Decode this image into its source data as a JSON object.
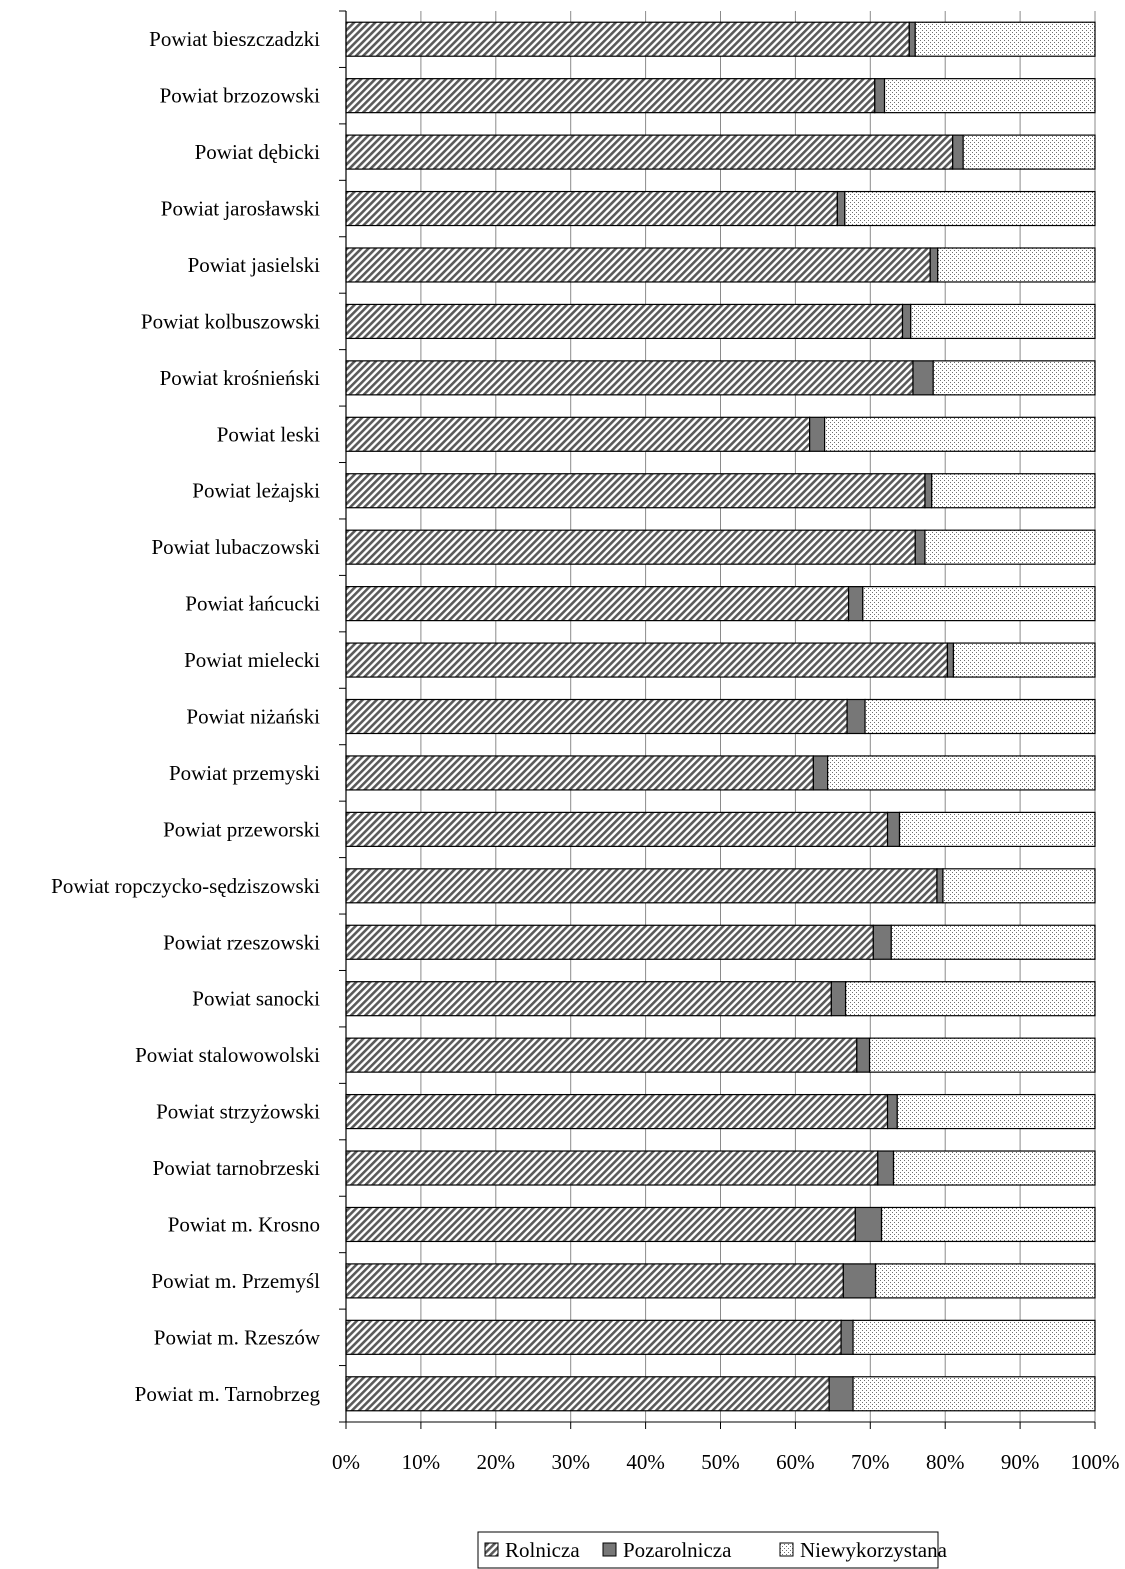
{
  "chart_data": {
    "type": "bar",
    "orientation": "horizontal",
    "stacked": "percent",
    "title": "",
    "xlabel": "",
    "ylabel": "",
    "xlim": [
      0,
      100
    ],
    "x_ticks": [
      "0%",
      "10%",
      "20%",
      "30%",
      "40%",
      "50%",
      "60%",
      "70%",
      "80%",
      "90%",
      "100%"
    ],
    "grid": "vertical",
    "legend": {
      "position": "bottom-right"
    },
    "categories": [
      "Powiat bieszczadzki",
      "Powiat brzozowski",
      "Powiat dębicki",
      "Powiat jarosławski",
      "Powiat jasielski",
      "Powiat kolbuszowski",
      "Powiat krośnieński",
      "Powiat leski",
      "Powiat leżajski",
      "Powiat lubaczowski",
      "Powiat łańcucki",
      "Powiat mielecki",
      "Powiat niżański",
      "Powiat przemyski",
      "Powiat przeworski",
      "Powiat ropczycko-sędziszowski",
      "Powiat rzeszowski",
      "Powiat sanocki",
      "Powiat stalowowolski",
      "Powiat strzyżowski",
      "Powiat tarnobrzeski",
      "Powiat m. Krosno",
      "Powiat m. Przemyśl",
      "Powiat m. Rzeszów",
      "Powiat m. Tarnobrzeg"
    ],
    "series": [
      {
        "name": "Rolnicza",
        "pattern": "diagonal-hatch",
        "color": "#bdbdbd",
        "values": [
          75.2,
          70.6,
          81.0,
          65.6,
          78.0,
          74.3,
          75.7,
          61.9,
          77.3,
          76.0,
          67.1,
          80.3,
          66.9,
          62.4,
          72.3,
          78.9,
          70.4,
          64.8,
          68.2,
          72.3,
          71.0,
          68.0,
          66.4,
          66.1,
          64.5
        ]
      },
      {
        "name": "Pozarolnicza",
        "pattern": "solid-dark",
        "color": "#7a7a7a",
        "values": [
          0.8,
          1.3,
          1.4,
          1.0,
          1.0,
          1.1,
          2.7,
          2.0,
          0.9,
          1.3,
          1.9,
          0.8,
          2.4,
          1.9,
          1.6,
          0.8,
          2.4,
          1.9,
          1.7,
          1.3,
          2.1,
          3.5,
          4.3,
          1.6,
          3.2
        ]
      },
      {
        "name": "Niewykorzystana",
        "pattern": "dots",
        "color": "#ffffff",
        "values": [
          24.0,
          28.1,
          17.6,
          33.4,
          21.0,
          24.6,
          21.6,
          36.1,
          21.8,
          22.7,
          31.0,
          18.9,
          30.7,
          35.7,
          26.1,
          20.3,
          27.2,
          33.3,
          30.1,
          26.4,
          26.9,
          28.5,
          29.3,
          32.3,
          32.3
        ]
      }
    ]
  }
}
